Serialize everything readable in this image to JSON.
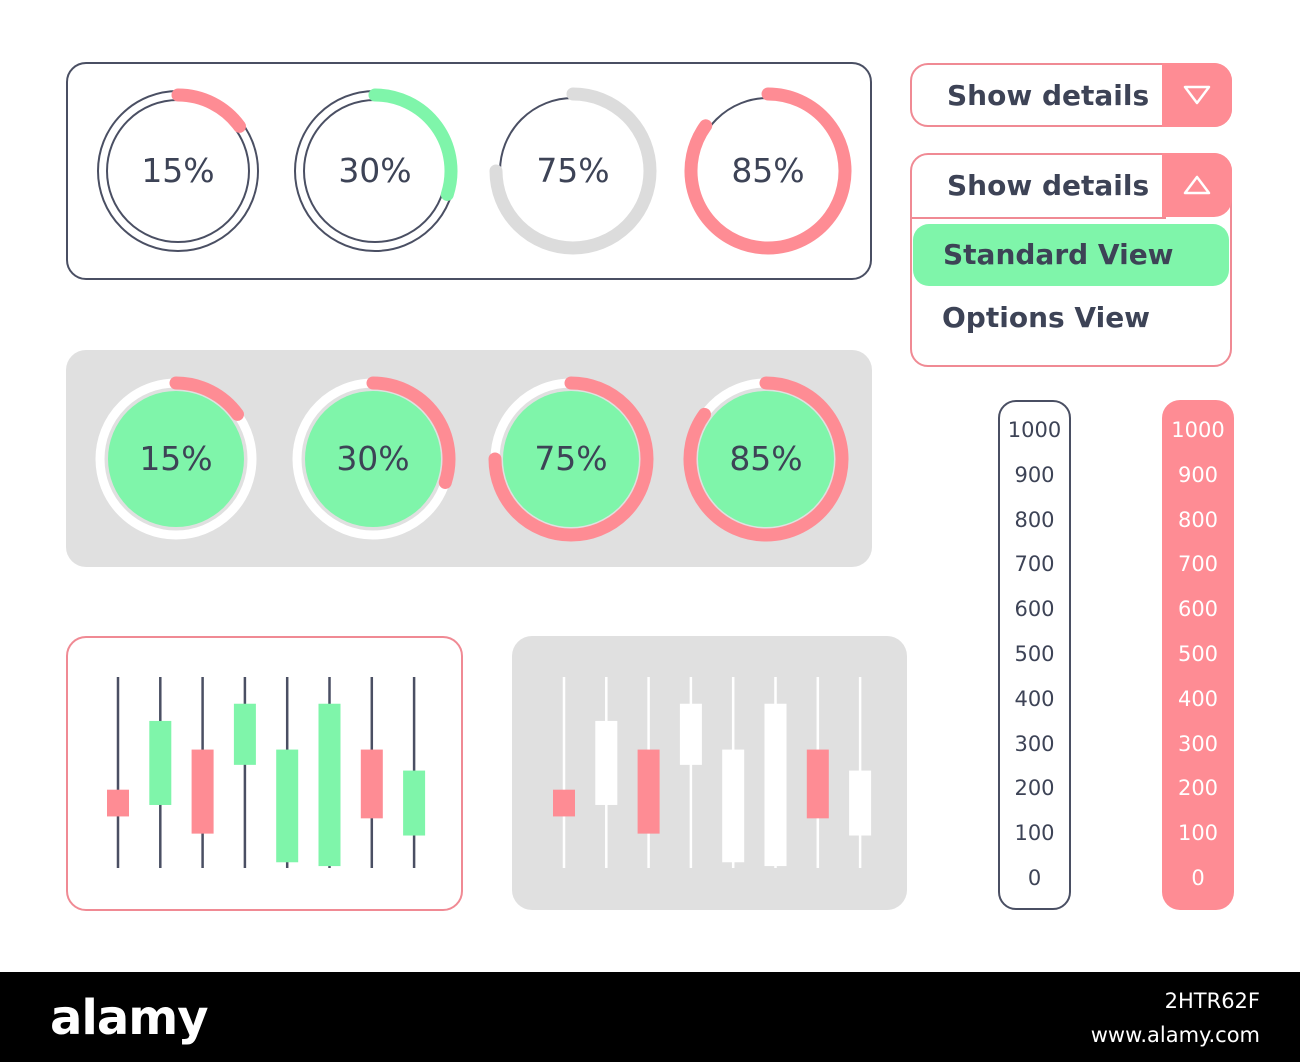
{
  "colors": {
    "pink": "#fe8c94",
    "green": "#7ff5aa",
    "gray": "#dcdcdc",
    "navy": "#4a4f63",
    "white": "#ffffff"
  },
  "outline_rings": [
    {
      "label": "15%",
      "value": 15,
      "color": "#fe8c94"
    },
    {
      "label": "30%",
      "value": 30,
      "color": "#7ff5aa"
    },
    {
      "label": "75%",
      "value": 75,
      "color": "#dcdcdc"
    },
    {
      "label": "85%",
      "value": 85,
      "color": "#fe8c94"
    }
  ],
  "filled_rings": [
    {
      "label": "15%",
      "value": 15
    },
    {
      "label": "30%",
      "value": 30
    },
    {
      "label": "75%",
      "value": 75
    },
    {
      "label": "85%",
      "value": 85
    }
  ],
  "dropdown_collapsed": {
    "title": "Show details",
    "icon": "triangle-down-icon"
  },
  "dropdown_expanded": {
    "title": "Show details",
    "icon": "triangle-up-icon",
    "options": [
      {
        "label": "Standard View",
        "selected": true
      },
      {
        "label": "Options View",
        "selected": false
      }
    ]
  },
  "scales": {
    "ticks": [
      "1000",
      "900",
      "800",
      "700",
      "600",
      "500",
      "400",
      "300",
      "200",
      "100",
      "0"
    ]
  },
  "candles_colored": [
    {
      "open": 0.41,
      "close": 0.27,
      "high": 1.0,
      "low": 0.0,
      "direction": "down"
    },
    {
      "open": 0.33,
      "close": 0.77,
      "high": 1.0,
      "low": 0.0,
      "direction": "up"
    },
    {
      "open": 0.62,
      "close": 0.18,
      "high": 1.0,
      "low": 0.0,
      "direction": "down"
    },
    {
      "open": 0.54,
      "close": 0.86,
      "high": 1.0,
      "low": 0.0,
      "direction": "up"
    },
    {
      "open": 0.03,
      "close": 0.62,
      "high": 1.0,
      "low": 0.0,
      "direction": "up"
    },
    {
      "open": 0.01,
      "close": 0.86,
      "high": 1.0,
      "low": 0.0,
      "direction": "up"
    },
    {
      "open": 0.62,
      "close": 0.26,
      "high": 1.0,
      "low": 0.0,
      "direction": "down"
    },
    {
      "open": 0.17,
      "close": 0.51,
      "high": 1.0,
      "low": 0.0,
      "direction": "up"
    }
  ],
  "candles_mono": [
    {
      "open": 0.41,
      "close": 0.27,
      "high": 1.0,
      "low": 0.0,
      "direction": "down"
    },
    {
      "open": 0.33,
      "close": 0.77,
      "high": 1.0,
      "low": 0.0,
      "direction": "up"
    },
    {
      "open": 0.62,
      "close": 0.18,
      "high": 1.0,
      "low": 0.0,
      "direction": "down"
    },
    {
      "open": 0.54,
      "close": 0.86,
      "high": 1.0,
      "low": 0.0,
      "direction": "up"
    },
    {
      "open": 0.03,
      "close": 0.62,
      "high": 1.0,
      "low": 0.0,
      "direction": "up"
    },
    {
      "open": 0.01,
      "close": 0.86,
      "high": 1.0,
      "low": 0.0,
      "direction": "up"
    },
    {
      "open": 0.62,
      "close": 0.26,
      "high": 1.0,
      "low": 0.0,
      "direction": "down"
    },
    {
      "open": 0.17,
      "close": 0.51,
      "high": 1.0,
      "low": 0.0,
      "direction": "up"
    }
  ],
  "footer": {
    "logo": "alamy",
    "image_id": "2HTR62F",
    "site": "www.alamy.com"
  }
}
